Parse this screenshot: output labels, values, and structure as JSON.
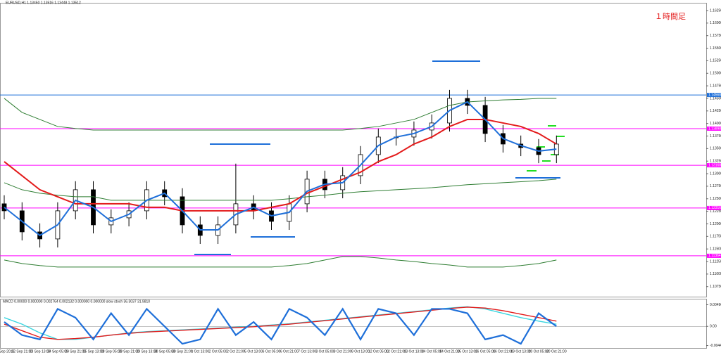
{
  "chart_data": [
    {
      "type": "candlestick",
      "title": "EURUSD,H1 1.13450 1.13516 1.13448 1.13512",
      "annotation": "１時間足",
      "categories": [
        "21 Sep 2015",
        "22 Sep 21:00",
        "23 Sep 13:00",
        "24 Sep 05:00",
        "24 Sep 21:00",
        "25 Sep 13:00",
        "28 Sep 05:00",
        "28 Sep 21:00",
        "29 Sep 13:00",
        "30 Sep 05:00",
        "30 Sep 21:00",
        "1 Oct 13:00",
        "2 Oct 05:00",
        "2 Oct 21:00",
        "5 Oct 13:00",
        "6 Oct 05:00",
        "6 Oct 21:00",
        "7 Oct 13:00",
        "8 Oct 05:00",
        "8 Oct 21:00",
        "9 Oct 13:00",
        "12 Oct 05:00",
        "12 Oct 21:00",
        "13 Oct 13:00",
        "14 Oct 05:00",
        "14 Oct 21:00",
        "15 Oct 13:00",
        "16 Oct 05:00",
        "16 Oct 21:00",
        "19 Oct 13:00",
        "20 Oct 05:00",
        "20 Oct 21:00"
      ],
      "open": [
        1.124,
        1.1226,
        1.1184,
        1.117,
        1.1226,
        1.1268,
        1.1198,
        1.1212,
        1.1226,
        1.1268,
        1.1254,
        1.1198,
        1.1177,
        1.1198,
        1.124,
        1.1226,
        1.1205,
        1.124,
        1.1289,
        1.1268,
        1.1296,
        1.1338,
        1.1373,
        1.1373,
        1.1387,
        1.1401,
        1.145,
        1.1436,
        1.138,
        1.1359,
        1.1352,
        1.1338
      ],
      "high": [
        1.1257,
        1.1243,
        1.1201,
        1.1243,
        1.1285,
        1.1285,
        1.1229,
        1.1243,
        1.1285,
        1.1285,
        1.1271,
        1.1215,
        1.1215,
        1.132,
        1.1257,
        1.1243,
        1.1257,
        1.1306,
        1.1306,
        1.1313,
        1.1355,
        1.139,
        1.139,
        1.1404,
        1.1418,
        1.1467,
        1.1467,
        1.1453,
        1.1397,
        1.1376,
        1.1369,
        1.1376
      ],
      "low": [
        1.1209,
        1.1167,
        1.1153,
        1.1153,
        1.1209,
        1.1181,
        1.1181,
        1.1195,
        1.1209,
        1.1237,
        1.1181,
        1.116,
        1.116,
        1.1181,
        1.1209,
        1.1188,
        1.1188,
        1.1223,
        1.1251,
        1.1251,
        1.1279,
        1.1321,
        1.1356,
        1.1356,
        1.137,
        1.1384,
        1.1419,
        1.1363,
        1.1342,
        1.1335,
        1.1321,
        1.1321
      ],
      "close": [
        1.1226,
        1.1184,
        1.117,
        1.1226,
        1.1268,
        1.1198,
        1.1212,
        1.1226,
        1.1268,
        1.1254,
        1.1198,
        1.1177,
        1.1198,
        1.124,
        1.1226,
        1.1205,
        1.124,
        1.1289,
        1.1268,
        1.1296,
        1.1338,
        1.1373,
        1.1373,
        1.1387,
        1.1401,
        1.145,
        1.1436,
        1.138,
        1.1359,
        1.1352,
        1.1338,
        1.1359
      ],
      "lines": [
        {
          "color": "#2e7d32",
          "values": [
            1.145,
            1.1422,
            1.1408,
            1.1394,
            1.139,
            1.1387,
            1.1387,
            1.1387,
            1.1387,
            1.1387,
            1.1387,
            1.1387,
            1.1387,
            1.1387,
            1.1387,
            1.1387,
            1.1387,
            1.1387,
            1.1387,
            1.1387,
            1.139,
            1.1394,
            1.1401,
            1.1408,
            1.1422,
            1.1436,
            1.1443,
            1.1445,
            1.1447,
            1.1448,
            1.145,
            1.145
          ]
        },
        {
          "color": "#2e7d32",
          "values": [
            1.1282,
            1.1268,
            1.1261,
            1.1257,
            1.1254,
            1.1254,
            1.1247,
            1.1247,
            1.1247,
            1.1247,
            1.1247,
            1.1247,
            1.1247,
            1.1247,
            1.1247,
            1.1247,
            1.125,
            1.1254,
            1.1257,
            1.1261,
            1.1264,
            1.1266,
            1.1268,
            1.127,
            1.1272,
            1.1275,
            1.1278,
            1.128,
            1.1282,
            1.1284,
            1.1286,
            1.1289
          ]
        },
        {
          "color": "#2e7d32",
          "values": [
            1.1128,
            1.1121,
            1.1117,
            1.1114,
            1.1114,
            1.1114,
            1.1114,
            1.1114,
            1.1114,
            1.1114,
            1.1114,
            1.1114,
            1.1114,
            1.1114,
            1.1114,
            1.1114,
            1.1117,
            1.1121,
            1.1128,
            1.1135,
            1.1135,
            1.1132,
            1.1128,
            1.1125,
            1.1121,
            1.1118,
            1.1114,
            1.1114,
            1.1114,
            1.1117,
            1.1121,
            1.1128
          ]
        },
        {
          "color": "#e31b1b",
          "values": [
            1.1324,
            1.1296,
            1.1268,
            1.1254,
            1.124,
            1.124,
            1.124,
            1.124,
            1.1233,
            1.1233,
            1.1226,
            1.1226,
            1.1226,
            1.1226,
            1.1226,
            1.1233,
            1.124,
            1.1261,
            1.1275,
            1.1289,
            1.1303,
            1.1324,
            1.1338,
            1.1359,
            1.1373,
            1.1394,
            1.1408,
            1.1408,
            1.1401,
            1.1394,
            1.138,
            1.1359
          ]
        },
        {
          "color": "#1e6fd9",
          "values": [
            1.1233,
            1.1205,
            1.1177,
            1.1198,
            1.1247,
            1.1233,
            1.1205,
            1.1219,
            1.1247,
            1.1261,
            1.1226,
            1.1188,
            1.1188,
            1.1219,
            1.1233,
            1.1216,
            1.1223,
            1.1265,
            1.1279,
            1.1282,
            1.1317,
            1.1356,
            1.1373,
            1.138,
            1.1394,
            1.1426,
            1.1443,
            1.1408,
            1.137,
            1.1356,
            1.1345,
            1.1349
          ]
        }
      ],
      "levels": [
        1.14568,
        1.13898,
        1.13168,
        1.12316,
        1.11364
      ],
      "level_colors": [
        "#1e6fd9",
        "#ff00ff",
        "#ff00ff",
        "#ff00ff",
        "#ff00ff"
      ],
      "ylim": [
        1.1055,
        1.1639
      ],
      "yticks": [
        {
          "value": 1.1075,
          "label": "1.10750"
        },
        {
          "value": 1.11,
          "label": "1.11000"
        },
        {
          "value": 1.1125,
          "label": "1.11250"
        },
        {
          "value": 1.115,
          "label": "1.11500"
        },
        {
          "value": 1.1175,
          "label": "1.11750"
        },
        {
          "value": 1.12,
          "label": "1.12000"
        },
        {
          "value": 1.1225,
          "label": "1.12250"
        },
        {
          "value": 1.125,
          "label": "1.12500"
        },
        {
          "value": 1.1275,
          "label": "1.12750"
        },
        {
          "value": 1.13,
          "label": "1.13000"
        },
        {
          "value": 1.1325,
          "label": "1.13250"
        },
        {
          "value": 1.135,
          "label": "1.13500"
        },
        {
          "value": 1.1375,
          "label": "1.13750"
        },
        {
          "value": 1.14,
          "label": "1.14000"
        },
        {
          "value": 1.1425,
          "label": "1.14250"
        },
        {
          "value": 1.145,
          "label": "1.14500"
        },
        {
          "value": 1.1475,
          "label": "1.14750"
        },
        {
          "value": 1.15,
          "label": "1.15000"
        },
        {
          "value": 1.1525,
          "label": "1.15250"
        },
        {
          "value": 1.155,
          "label": "1.15500"
        },
        {
          "value": 1.1575,
          "label": "1.15750"
        },
        {
          "value": 1.16,
          "label": "1.16000"
        },
        {
          "value": 1.1625,
          "label": "1.16250"
        }
      ]
    },
    {
      "type": "line",
      "title": "MACD 0.00000 0.000000 0.002764 0.002132 0.000000 0.000000 slow stoch 36.3037 31.9810",
      "series": [
        {
          "color": "#3ad6e0",
          "values": [
            0.002,
            0.0005,
            -0.0015,
            -0.003,
            -0.003,
            -0.0025,
            -0.002,
            -0.0015,
            -0.0012,
            -0.001,
            -0.0008,
            -0.0006,
            -0.0004,
            -0.0002,
            0.0,
            0.0003,
            0.0006,
            0.001,
            0.0014,
            0.0018,
            0.0022,
            0.0026,
            0.003,
            0.0034,
            0.0038,
            0.0042,
            0.0045,
            0.004,
            0.003,
            0.002,
            0.0012,
            0.0005
          ]
        },
        {
          "color": "#e31b1b",
          "values": [
            0.0005,
            -0.001,
            -0.0025,
            -0.003,
            -0.0028,
            -0.0025,
            -0.002,
            -0.0016,
            -0.0013,
            -0.0011,
            -0.0009,
            -0.0007,
            -0.0005,
            -0.0003,
            -0.0001,
            0.0002,
            0.0005,
            0.0009,
            0.0013,
            0.0017,
            0.0021,
            0.0025,
            0.0029,
            0.0033,
            0.0037,
            0.0041,
            0.0044,
            0.0042,
            0.0036,
            0.0028,
            0.002,
            0.0012
          ]
        },
        {
          "color": "#1e6fd9",
          "values": [
            0.001,
            -0.002,
            -0.003,
            0.004,
            0.002,
            -0.003,
            0.003,
            -0.002,
            0.004,
            0.0,
            -0.004,
            -0.003,
            0.004,
            -0.002,
            0.001,
            -0.003,
            0.004,
            0.002,
            -0.002,
            0.004,
            -0.003,
            0.004,
            0.003,
            -0.002,
            0.004,
            0.004,
            0.003,
            -0.003,
            -0.002,
            -0.004,
            0.003,
            0.0
          ]
        }
      ],
      "ylim": [
        -0.0048,
        0.0052
      ],
      "yticks": [
        0.004968,
        {
          "value": 0,
          "label": "0.00"
        },
        -0.004406
      ]
    }
  ]
}
